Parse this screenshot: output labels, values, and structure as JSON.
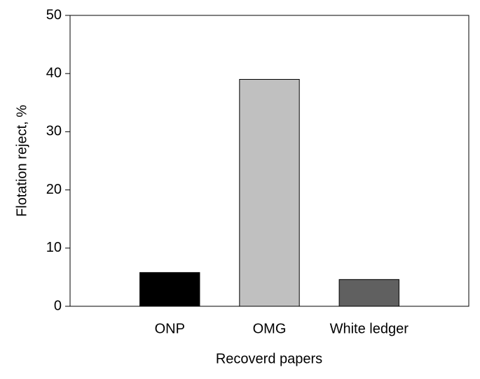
{
  "chart_data": {
    "type": "bar",
    "xlabel": "Recoverd papers",
    "ylabel": "Flotation reject, %",
    "categories": [
      "ONP",
      "OMG",
      "White ledger"
    ],
    "values": [
      5.8,
      39,
      4.6
    ],
    "colors": [
      "#000000",
      "#c0c0c0",
      "#606060"
    ],
    "ylim": [
      0,
      50
    ],
    "yticks": [
      0,
      10,
      20,
      30,
      40,
      50
    ],
    "grid": false
  }
}
